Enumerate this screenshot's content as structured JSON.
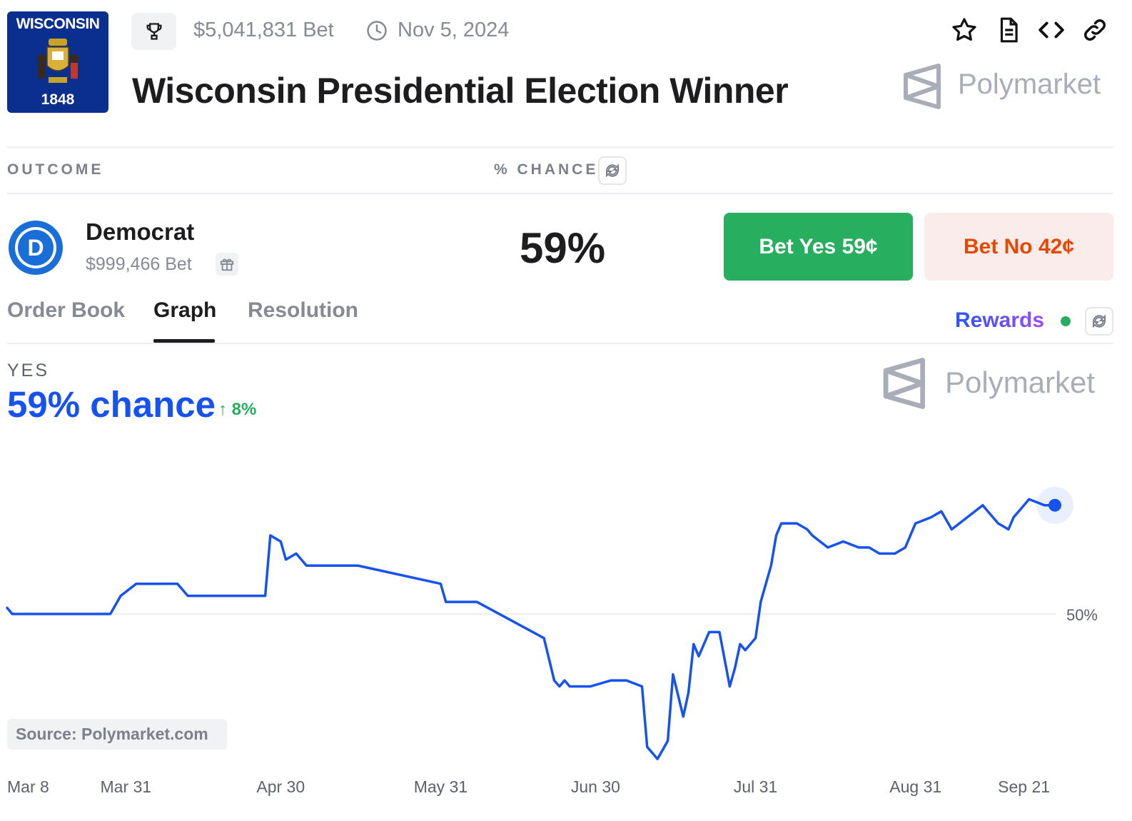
{
  "market": {
    "flag_top_text": "WISCONSIN",
    "flag_bottom_text": "1848",
    "volume": "$5,041,831 Bet",
    "end_date": "Nov 5, 2024",
    "title": "Wisconsin Presidential Election Winner",
    "brand": "Polymarket"
  },
  "icons": {
    "trophy": "trophy-icon",
    "clock": "clock-icon",
    "star": "star-icon",
    "document": "document-icon",
    "embed": "embed-code-icon",
    "link": "link-icon",
    "refresh": "refresh-icon",
    "gift": "gift-icon"
  },
  "table": {
    "outcome_header": "OUTCOME",
    "chance_header": "% CHANCE"
  },
  "outcome": {
    "logo_letter": "D",
    "name": "Democrat",
    "volume": "$999,466 Bet",
    "chance": "59%",
    "bet_yes_label": "Bet Yes 59¢",
    "bet_no_label": "Bet No 42¢"
  },
  "tabs": [
    {
      "label": "Order Book",
      "active": false
    },
    {
      "label": "Graph",
      "active": true
    },
    {
      "label": "Resolution",
      "active": false
    }
  ],
  "rewards_label": "Rewards",
  "graph": {
    "side_label": "YES",
    "chance_text": "59% chance",
    "delta_text": "↑ 8%",
    "source": "Source: Polymarket.com"
  },
  "colors": {
    "accent_blue": "#1652f0",
    "yes_green": "#27ae5f",
    "no_orange": "#e64800",
    "no_bg": "#fbecec",
    "flag_blue": "#0b2f8f"
  },
  "chart_data": {
    "type": "line",
    "y_unit": "% chance",
    "y_ticks": [
      50
    ],
    "y_tick_labels": [
      "50%"
    ],
    "ylim": [
      37,
      63
    ],
    "grid": true,
    "x_ticks": [
      "Mar 8",
      "Mar 31",
      "Apr 30",
      "May 31",
      "Jun 30",
      "Jul 31",
      "Aug 31",
      "Sep 21"
    ],
    "series": [
      {
        "x": [
          "Mar 8",
          "Mar 9",
          "Mar 28",
          "Mar 30",
          "Apr 2",
          "Apr 10",
          "Apr 12",
          "Apr 27",
          "Apr 28",
          "Apr 30",
          "May 1",
          "May 3",
          "May 5",
          "May 8",
          "May 15",
          "May 31",
          "Jun 1",
          "Jun 7",
          "Jun 20",
          "Jun 22",
          "Jun 23",
          "Jun 24",
          "Jun 25",
          "Jun 29",
          "Jul 3",
          "Jul 6",
          "Jul 9",
          "Jul 10",
          "Jul 12",
          "Jul 14",
          "Jul 15",
          "Jul 17",
          "Jul 18",
          "Jul 19",
          "Jul 20",
          "Jul 22",
          "Jul 24",
          "Jul 26",
          "Jul 27",
          "Jul 28",
          "Jul 29",
          "Jul 31",
          "Aug 1",
          "Aug 3",
          "Aug 4",
          "Aug 5",
          "Aug 8",
          "Aug 10",
          "Aug 11",
          "Aug 14",
          "Aug 17",
          "Aug 20",
          "Aug 22",
          "Aug 24",
          "Aug 27",
          "Aug 29",
          "Aug 31",
          "Sep 3",
          "Sep 5",
          "Sep 7",
          "Sep 10",
          "Sep 13",
          "Sep 14",
          "Sep 16",
          "Sep 18",
          "Sep 19",
          "Sep 20",
          "Sep 21",
          "Sep 22",
          "Sep 25",
          "Sep 27"
        ],
        "values": [
          50.5,
          50.0,
          50.0,
          51.5,
          52.5,
          52.5,
          51.5,
          51.5,
          56.5,
          56.0,
          54.5,
          55.0,
          54.0,
          54.0,
          54.0,
          52.5,
          51.0,
          51.0,
          48.0,
          44.5,
          44.0,
          44.5,
          44.0,
          44.0,
          44.5,
          44.5,
          44.0,
          39.0,
          38.0,
          39.5,
          45.0,
          41.5,
          43.5,
          47.5,
          46.5,
          48.5,
          48.5,
          44.0,
          45.5,
          47.5,
          47.0,
          48.0,
          51.0,
          54.0,
          56.5,
          57.5,
          57.5,
          57.0,
          56.5,
          55.5,
          56.0,
          55.5,
          55.5,
          55.0,
          55.0,
          55.5,
          57.5,
          58.0,
          58.5,
          57.0,
          58.0,
          59.0,
          58.5,
          57.5,
          57.0,
          58.0,
          58.5,
          59.0,
          59.5,
          59.0,
          59.0
        ]
      }
    ]
  }
}
